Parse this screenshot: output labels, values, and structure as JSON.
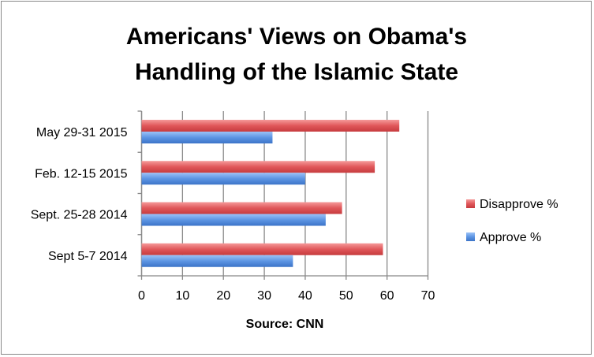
{
  "chart_data": {
    "type": "bar",
    "orientation": "horizontal",
    "title": "Americans' Views on Obama's Handling of the Islamic State",
    "title_lines": [
      "Americans' Views on Obama's",
      "Handling of the Islamic State"
    ],
    "xlabel": "Source: CNN",
    "ylabel": "",
    "categories": [
      "May 29-31 2015",
      "Feb. 12-15 2015",
      "Sept. 25-28 2014",
      "Sept 5-7 2014"
    ],
    "series": [
      {
        "name": "Disapprove %",
        "color": "#d9474b",
        "values": [
          63,
          57,
          49,
          59
        ]
      },
      {
        "name": "Approve %",
        "color": "#4a86d8",
        "values": [
          32,
          40,
          45,
          37
        ]
      }
    ],
    "xlim": [
      0,
      70
    ],
    "xticks": [
      0,
      10,
      20,
      30,
      40,
      50,
      60,
      70
    ],
    "grid": true,
    "legend_position": "right"
  }
}
